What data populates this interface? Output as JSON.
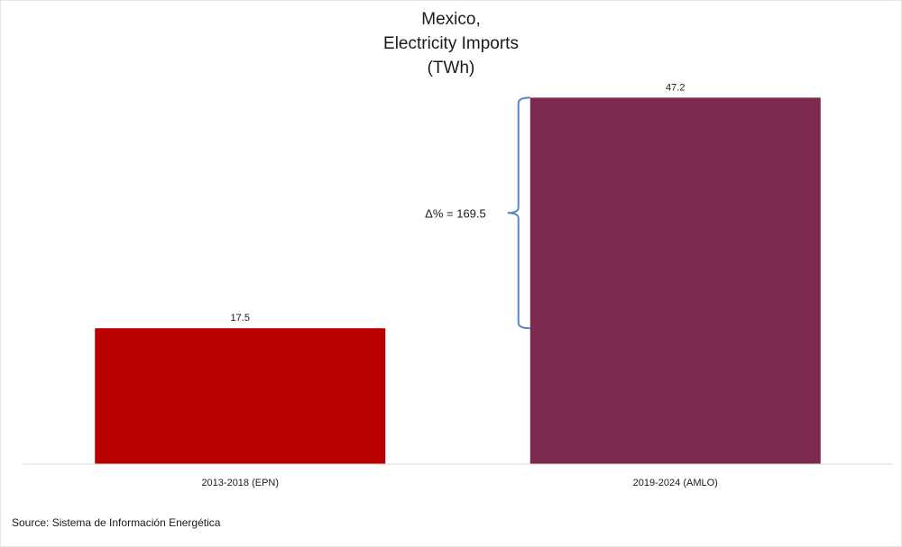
{
  "chart_data": {
    "type": "bar",
    "title_lines": [
      "Mexico,",
      "Electricity Imports",
      "(TWh)"
    ],
    "categories": [
      "2013-2018 (EPN)",
      "2019-2024 (AMLO)"
    ],
    "values": [
      17.5,
      47.2
    ],
    "value_labels": [
      "17.5",
      "47.2"
    ],
    "colors": [
      "#b80000",
      "#7b2a4d"
    ],
    "ylim": [
      0,
      52
    ],
    "grid": false,
    "legend": "none",
    "annotation": {
      "text": "Δ% = 169.5",
      "type": "brace",
      "brace_color": "#5b86c2",
      "spans_from_value": 17.5,
      "spans_to_value": 47.2
    }
  },
  "source": "Source: Sistema de Información Energética"
}
